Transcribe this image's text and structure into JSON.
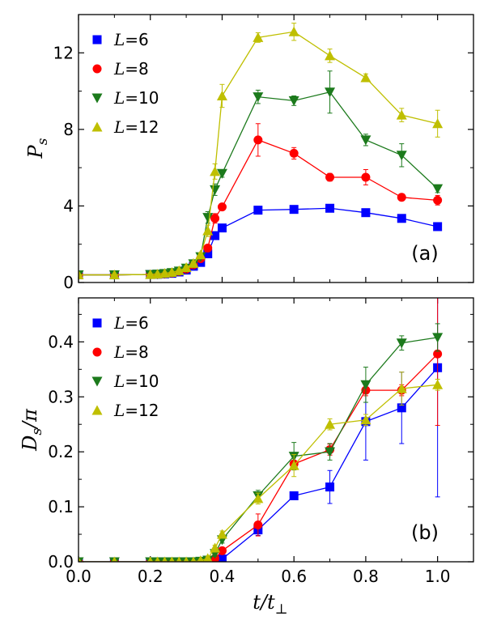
{
  "chart_data": [
    {
      "type": "line",
      "panel_label": "(a)",
      "ylabel": {
        "main": "P",
        "sub": "s"
      },
      "xlim": [
        0.0,
        1.1
      ],
      "ylim": [
        0,
        14
      ],
      "yticks": [
        0,
        4,
        8,
        12
      ],
      "ytick_labels": [
        "0",
        "4",
        "8",
        "12"
      ],
      "grid": false,
      "legend": "top-left",
      "series": [
        {
          "name": "L=6",
          "legend_var": "L",
          "legend_eq": "=6",
          "marker": "square",
          "color": "#0000ff",
          "x": [
            0.0,
            0.1,
            0.2,
            0.22,
            0.24,
            0.26,
            0.28,
            0.3,
            0.32,
            0.34,
            0.36,
            0.38,
            0.4,
            0.5,
            0.6,
            0.7,
            0.8,
            0.9,
            1.0
          ],
          "y": [
            0.4,
            0.4,
            0.42,
            0.43,
            0.45,
            0.48,
            0.55,
            0.65,
            0.85,
            1.05,
            1.5,
            2.45,
            2.85,
            3.78,
            3.82,
            3.88,
            3.65,
            3.35,
            2.92
          ],
          "err": [
            0.03,
            0.03,
            0.03,
            0.03,
            0.03,
            0.03,
            0.03,
            0.05,
            0.05,
            0.08,
            0.1,
            0.15,
            0.12,
            0.2,
            0.1,
            0.1,
            0.12,
            0.1,
            0.1
          ]
        },
        {
          "name": "L=8",
          "legend_var": "L",
          "legend_eq": "=8",
          "marker": "circle",
          "color": "#ff0000",
          "x": [
            0.0,
            0.1,
            0.2,
            0.22,
            0.24,
            0.26,
            0.28,
            0.3,
            0.32,
            0.34,
            0.36,
            0.38,
            0.4,
            0.5,
            0.6,
            0.7,
            0.8,
            0.9,
            1.0
          ],
          "y": [
            0.4,
            0.4,
            0.42,
            0.43,
            0.46,
            0.5,
            0.58,
            0.7,
            0.92,
            1.25,
            1.8,
            3.35,
            3.95,
            7.45,
            6.75,
            5.5,
            5.5,
            4.45,
            4.3
          ],
          "err": [
            0.03,
            0.03,
            0.03,
            0.03,
            0.03,
            0.03,
            0.05,
            0.05,
            0.08,
            0.1,
            0.15,
            0.25,
            0.15,
            0.85,
            0.3,
            0.2,
            0.4,
            0.15,
            0.25
          ]
        },
        {
          "name": "L=10",
          "legend_var": "L",
          "legend_eq": "=10",
          "marker": "triangle-down",
          "color": "#1c7a1c",
          "x": [
            0.0,
            0.1,
            0.2,
            0.22,
            0.24,
            0.26,
            0.28,
            0.3,
            0.32,
            0.34,
            0.36,
            0.38,
            0.4,
            0.5,
            0.6,
            0.7,
            0.8,
            0.9,
            1.0
          ],
          "y": [
            0.4,
            0.4,
            0.42,
            0.44,
            0.47,
            0.52,
            0.6,
            0.75,
            0.98,
            1.35,
            3.4,
            4.85,
            5.7,
            9.7,
            9.5,
            9.95,
            7.45,
            6.65,
            4.9
          ],
          "err": [
            0.03,
            0.03,
            0.03,
            0.03,
            0.03,
            0.03,
            0.05,
            0.05,
            0.08,
            0.1,
            0.3,
            0.3,
            0.2,
            0.35,
            0.25,
            1.1,
            0.3,
            0.6,
            0.2
          ]
        },
        {
          "name": "L=12",
          "legend_var": "L",
          "legend_eq": "=12",
          "marker": "triangle-up",
          "color": "#bfbf00",
          "x": [
            0.0,
            0.1,
            0.2,
            0.22,
            0.24,
            0.26,
            0.28,
            0.3,
            0.32,
            0.34,
            0.36,
            0.38,
            0.4,
            0.5,
            0.6,
            0.7,
            0.8,
            0.9,
            1.0
          ],
          "y": [
            0.4,
            0.4,
            0.42,
            0.44,
            0.48,
            0.53,
            0.62,
            0.78,
            1.0,
            1.45,
            2.7,
            5.8,
            9.75,
            12.8,
            13.1,
            11.85,
            10.7,
            8.75,
            8.3
          ],
          "err": [
            0.03,
            0.03,
            0.03,
            0.03,
            0.03,
            0.03,
            0.05,
            0.05,
            0.08,
            0.1,
            0.3,
            0.4,
            0.6,
            0.25,
            0.45,
            0.35,
            0.2,
            0.35,
            0.7
          ]
        }
      ]
    },
    {
      "type": "line",
      "panel_label": "(b)",
      "ylabel": {
        "main": "D",
        "sub": "s",
        "tail": "/π"
      },
      "xlabel": {
        "main": "t",
        "mid": "/t",
        "sub": "⊥"
      },
      "xlim": [
        0.0,
        1.1
      ],
      "ylim": [
        0.0,
        0.48
      ],
      "xticks": [
        0.0,
        0.2,
        0.4,
        0.6,
        0.8,
        1.0
      ],
      "xtick_labels": [
        "0.0",
        "0.2",
        "0.4",
        "0.6",
        "0.8",
        "1.0"
      ],
      "yticks": [
        0.0,
        0.1,
        0.2,
        0.3,
        0.4
      ],
      "ytick_labels": [
        "0.0",
        "0.1",
        "0.2",
        "0.3",
        "0.4"
      ],
      "grid": false,
      "legend": "top-left",
      "series": [
        {
          "name": "L=6",
          "legend_var": "L",
          "legend_eq": "=6",
          "marker": "square",
          "color": "#0000ff",
          "x": [
            0.0,
            0.1,
            0.2,
            0.22,
            0.24,
            0.26,
            0.28,
            0.3,
            0.32,
            0.34,
            0.36,
            0.38,
            0.4,
            0.5,
            0.6,
            0.7,
            0.8,
            0.9,
            1.0
          ],
          "y": [
            0.0,
            0.0,
            0.0,
            0.0,
            0.0,
            0.0,
            0.0,
            0.0,
            0.0,
            0.0,
            0.0,
            0.002,
            0.005,
            0.058,
            0.12,
            0.136,
            0.255,
            0.28,
            0.353
          ],
          "err": [
            0.001,
            0.001,
            0.001,
            0.001,
            0.001,
            0.001,
            0.001,
            0.001,
            0.001,
            0.001,
            0.001,
            0.002,
            0.004,
            0.01,
            0.005,
            0.03,
            0.07,
            0.065,
            0.235
          ]
        },
        {
          "name": "L=8",
          "legend_var": "L",
          "legend_eq": "=8",
          "marker": "circle",
          "color": "#ff0000",
          "x": [
            0.0,
            0.1,
            0.2,
            0.22,
            0.24,
            0.26,
            0.28,
            0.3,
            0.32,
            0.34,
            0.36,
            0.38,
            0.4,
            0.5,
            0.6,
            0.7,
            0.8,
            0.9,
            1.0
          ],
          "y": [
            0.0,
            0.0,
            0.0,
            0.0,
            0.0,
            0.0,
            0.0,
            0.0,
            0.0,
            0.0,
            0.002,
            0.006,
            0.02,
            0.067,
            0.178,
            0.204,
            0.312,
            0.312,
            0.378
          ],
          "err": [
            0.001,
            0.001,
            0.001,
            0.001,
            0.001,
            0.001,
            0.001,
            0.001,
            0.001,
            0.001,
            0.002,
            0.004,
            0.005,
            0.02,
            0.005,
            0.01,
            0.01,
            0.01,
            0.13
          ]
        },
        {
          "name": "L=10",
          "legend_var": "L",
          "legend_eq": "=10",
          "marker": "triangle-down",
          "color": "#1c7a1c",
          "x": [
            0.0,
            0.1,
            0.2,
            0.22,
            0.24,
            0.26,
            0.28,
            0.3,
            0.32,
            0.34,
            0.36,
            0.38,
            0.4,
            0.5,
            0.6,
            0.7,
            0.8,
            0.9,
            1.0
          ],
          "y": [
            0.0,
            0.0,
            0.0,
            0.0,
            0.0,
            0.0,
            0.0,
            0.0,
            0.0,
            0.001,
            0.003,
            0.015,
            0.04,
            0.12,
            0.192,
            0.2,
            0.322,
            0.398,
            0.408
          ],
          "err": [
            0.001,
            0.001,
            0.001,
            0.001,
            0.001,
            0.001,
            0.001,
            0.001,
            0.001,
            0.001,
            0.002,
            0.005,
            0.006,
            0.01,
            0.025,
            0.015,
            0.032,
            0.013,
            0.025
          ]
        },
        {
          "name": "L=12",
          "legend_var": "L",
          "legend_eq": "=12",
          "marker": "triangle-up",
          "color": "#bfbf00",
          "x": [
            0.0,
            0.1,
            0.2,
            0.22,
            0.24,
            0.26,
            0.28,
            0.3,
            0.32,
            0.34,
            0.36,
            0.38,
            0.4,
            0.5,
            0.6,
            0.7,
            0.8,
            0.9,
            1.0
          ],
          "y": [
            0.0,
            0.0,
            0.0,
            0.0,
            0.0,
            0.0,
            0.0,
            0.0,
            0.0,
            0.002,
            0.006,
            0.025,
            0.05,
            0.115,
            0.175,
            0.25,
            0.258,
            0.315,
            0.322
          ],
          "err": [
            0.001,
            0.001,
            0.001,
            0.001,
            0.001,
            0.001,
            0.001,
            0.001,
            0.001,
            0.002,
            0.003,
            0.005,
            0.006,
            0.01,
            0.02,
            0.01,
            0.01,
            0.03,
            0.01
          ]
        }
      ]
    }
  ]
}
